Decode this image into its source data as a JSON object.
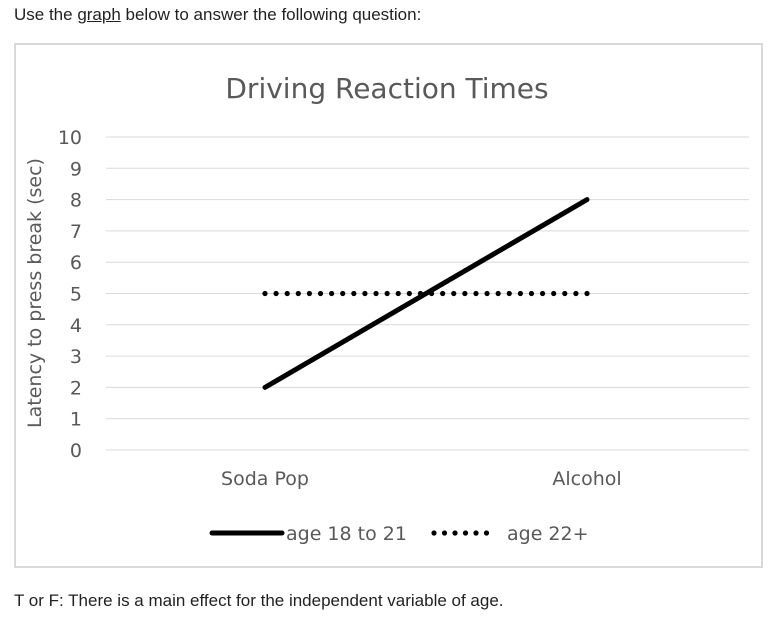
{
  "question": {
    "prefix": "Use the ",
    "link_text": "graph",
    "suffix": " below to answer the following question:",
    "statement": "T or F: There is a main effect for the independent variable of age."
  },
  "colors": {
    "series_line": "#000000",
    "gridline": "#d9d9d9",
    "frame_border": "#d9d9d9",
    "title_text": "#595959",
    "axis_text": "#595959"
  },
  "chart_data": {
    "type": "line",
    "title": "Driving Reaction Times",
    "xlabel": "",
    "ylabel": "Latency to press break (sec)",
    "categories": [
      "Soda Pop",
      "Alcohol"
    ],
    "ylim": [
      0,
      10
    ],
    "yticks": [
      "0",
      "1",
      "2",
      "3",
      "4",
      "5",
      "6",
      "7",
      "8",
      "9",
      "10"
    ],
    "grid": true,
    "legend_position": "bottom",
    "series": [
      {
        "name": "age 18 to 21",
        "values": [
          2,
          8
        ],
        "style": "solid"
      },
      {
        "name": "age 22+",
        "values": [
          5,
          5
        ],
        "style": "dotted"
      }
    ]
  }
}
